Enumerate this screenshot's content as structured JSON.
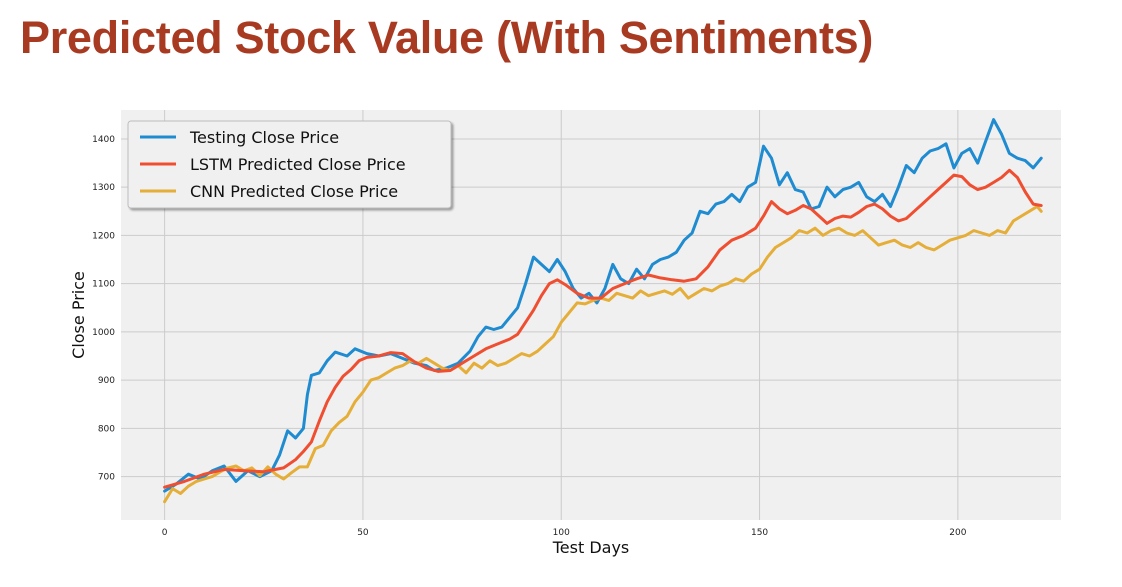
{
  "title": "Predicted Stock Value (With Sentiments)",
  "colors": {
    "title": "#A83A22",
    "plot_bg": "#F0F0F0",
    "grid": "#CBCBCB"
  },
  "chart_data": {
    "type": "line",
    "xlabel": "Test Days",
    "ylabel": "Close Price",
    "xlim": [
      -11,
      226
    ],
    "ylim": [
      610,
      1460
    ],
    "xticks": [
      0,
      50,
      100,
      150,
      200
    ],
    "yticks": [
      700,
      800,
      900,
      1000,
      1100,
      1200,
      1300,
      1400
    ],
    "grid": true,
    "legend_position": "top-left",
    "series": [
      {
        "name": "Testing Close Price",
        "color": "#1F8BD0",
        "points": [
          [
            0,
            670
          ],
          [
            3,
            685
          ],
          [
            6,
            705
          ],
          [
            9,
            695
          ],
          [
            12,
            712
          ],
          [
            15,
            722
          ],
          [
            18,
            690
          ],
          [
            21,
            712
          ],
          [
            24,
            700
          ],
          [
            27,
            712
          ],
          [
            29,
            745
          ],
          [
            31,
            795
          ],
          [
            33,
            780
          ],
          [
            35,
            800
          ],
          [
            36,
            870
          ],
          [
            37,
            910
          ],
          [
            39,
            915
          ],
          [
            41,
            940
          ],
          [
            43,
            958
          ],
          [
            46,
            950
          ],
          [
            48,
            965
          ],
          [
            51,
            955
          ],
          [
            54,
            950
          ],
          [
            57,
            955
          ],
          [
            60,
            945
          ],
          [
            63,
            935
          ],
          [
            66,
            930
          ],
          [
            68,
            920
          ],
          [
            71,
            925
          ],
          [
            74,
            935
          ],
          [
            77,
            960
          ],
          [
            79,
            990
          ],
          [
            81,
            1010
          ],
          [
            83,
            1005
          ],
          [
            85,
            1010
          ],
          [
            87,
            1030
          ],
          [
            89,
            1050
          ],
          [
            91,
            1100
          ],
          [
            93,
            1155
          ],
          [
            95,
            1140
          ],
          [
            97,
            1125
          ],
          [
            99,
            1150
          ],
          [
            101,
            1125
          ],
          [
            103,
            1090
          ],
          [
            105,
            1070
          ],
          [
            107,
            1080
          ],
          [
            109,
            1060
          ],
          [
            111,
            1090
          ],
          [
            113,
            1140
          ],
          [
            115,
            1110
          ],
          [
            117,
            1100
          ],
          [
            119,
            1130
          ],
          [
            121,
            1110
          ],
          [
            123,
            1140
          ],
          [
            125,
            1150
          ],
          [
            127,
            1155
          ],
          [
            129,
            1165
          ],
          [
            131,
            1190
          ],
          [
            133,
            1205
          ],
          [
            135,
            1250
          ],
          [
            137,
            1245
          ],
          [
            139,
            1265
          ],
          [
            141,
            1270
          ],
          [
            143,
            1285
          ],
          [
            145,
            1270
          ],
          [
            147,
            1300
          ],
          [
            149,
            1310
          ],
          [
            151,
            1385
          ],
          [
            153,
            1360
          ],
          [
            155,
            1305
          ],
          [
            157,
            1330
          ],
          [
            159,
            1295
          ],
          [
            161,
            1290
          ],
          [
            163,
            1255
          ],
          [
            165,
            1260
          ],
          [
            167,
            1300
          ],
          [
            169,
            1280
          ],
          [
            171,
            1295
          ],
          [
            173,
            1300
          ],
          [
            175,
            1310
          ],
          [
            177,
            1280
          ],
          [
            179,
            1270
          ],
          [
            181,
            1285
          ],
          [
            183,
            1260
          ],
          [
            185,
            1300
          ],
          [
            187,
            1345
          ],
          [
            189,
            1330
          ],
          [
            191,
            1360
          ],
          [
            193,
            1375
          ],
          [
            195,
            1380
          ],
          [
            197,
            1390
          ],
          [
            199,
            1340
          ],
          [
            201,
            1370
          ],
          [
            203,
            1380
          ],
          [
            205,
            1350
          ],
          [
            207,
            1395
          ],
          [
            209,
            1440
          ],
          [
            211,
            1410
          ],
          [
            213,
            1370
          ],
          [
            215,
            1360
          ],
          [
            217,
            1355
          ],
          [
            219,
            1340
          ],
          [
            221,
            1360
          ]
        ]
      },
      {
        "name": "LSTM Predicted Close Price",
        "color": "#F04E30",
        "points": [
          [
            0,
            678
          ],
          [
            5,
            690
          ],
          [
            10,
            705
          ],
          [
            15,
            715
          ],
          [
            20,
            712
          ],
          [
            25,
            710
          ],
          [
            28,
            715
          ],
          [
            30,
            718
          ],
          [
            33,
            735
          ],
          [
            35,
            752
          ],
          [
            37,
            772
          ],
          [
            39,
            815
          ],
          [
            41,
            855
          ],
          [
            43,
            885
          ],
          [
            45,
            908
          ],
          [
            47,
            922
          ],
          [
            49,
            940
          ],
          [
            51,
            947
          ],
          [
            54,
            950
          ],
          [
            57,
            957
          ],
          [
            60,
            955
          ],
          [
            63,
            938
          ],
          [
            66,
            925
          ],
          [
            69,
            918
          ],
          [
            72,
            920
          ],
          [
            75,
            935
          ],
          [
            78,
            950
          ],
          [
            81,
            965
          ],
          [
            84,
            975
          ],
          [
            87,
            985
          ],
          [
            89,
            995
          ],
          [
            91,
            1020
          ],
          [
            93,
            1045
          ],
          [
            95,
            1075
          ],
          [
            97,
            1100
          ],
          [
            99,
            1108
          ],
          [
            101,
            1098
          ],
          [
            104,
            1080
          ],
          [
            107,
            1070
          ],
          [
            110,
            1070
          ],
          [
            113,
            1090
          ],
          [
            116,
            1100
          ],
          [
            119,
            1110
          ],
          [
            122,
            1118
          ],
          [
            125,
            1112
          ],
          [
            128,
            1108
          ],
          [
            131,
            1105
          ],
          [
            134,
            1110
          ],
          [
            137,
            1135
          ],
          [
            140,
            1170
          ],
          [
            143,
            1190
          ],
          [
            146,
            1200
          ],
          [
            149,
            1215
          ],
          [
            151,
            1240
          ],
          [
            153,
            1270
          ],
          [
            155,
            1255
          ],
          [
            157,
            1245
          ],
          [
            159,
            1252
          ],
          [
            161,
            1262
          ],
          [
            163,
            1255
          ],
          [
            165,
            1240
          ],
          [
            167,
            1225
          ],
          [
            169,
            1235
          ],
          [
            171,
            1240
          ],
          [
            173,
            1238
          ],
          [
            175,
            1248
          ],
          [
            177,
            1260
          ],
          [
            179,
            1265
          ],
          [
            181,
            1255
          ],
          [
            183,
            1240
          ],
          [
            185,
            1230
          ],
          [
            187,
            1235
          ],
          [
            189,
            1250
          ],
          [
            191,
            1265
          ],
          [
            193,
            1280
          ],
          [
            195,
            1295
          ],
          [
            197,
            1310
          ],
          [
            199,
            1325
          ],
          [
            201,
            1322
          ],
          [
            203,
            1305
          ],
          [
            205,
            1295
          ],
          [
            207,
            1300
          ],
          [
            209,
            1310
          ],
          [
            211,
            1320
          ],
          [
            213,
            1335
          ],
          [
            215,
            1320
          ],
          [
            217,
            1290
          ],
          [
            219,
            1265
          ],
          [
            221,
            1262
          ]
        ]
      },
      {
        "name": "CNN Predicted Close Price",
        "color": "#E5AE38",
        "points": [
          [
            0,
            648
          ],
          [
            2,
            675
          ],
          [
            4,
            665
          ],
          [
            6,
            680
          ],
          [
            8,
            690
          ],
          [
            10,
            695
          ],
          [
            12,
            700
          ],
          [
            14,
            710
          ],
          [
            16,
            718
          ],
          [
            18,
            722
          ],
          [
            20,
            712
          ],
          [
            22,
            718
          ],
          [
            24,
            702
          ],
          [
            26,
            720
          ],
          [
            28,
            705
          ],
          [
            30,
            695
          ],
          [
            32,
            708
          ],
          [
            34,
            720
          ],
          [
            36,
            720
          ],
          [
            38,
            758
          ],
          [
            40,
            765
          ],
          [
            42,
            795
          ],
          [
            44,
            812
          ],
          [
            46,
            825
          ],
          [
            48,
            855
          ],
          [
            50,
            875
          ],
          [
            52,
            900
          ],
          [
            54,
            905
          ],
          [
            56,
            915
          ],
          [
            58,
            925
          ],
          [
            60,
            930
          ],
          [
            62,
            940
          ],
          [
            64,
            935
          ],
          [
            66,
            945
          ],
          [
            68,
            935
          ],
          [
            70,
            925
          ],
          [
            72,
            920
          ],
          [
            74,
            930
          ],
          [
            76,
            915
          ],
          [
            78,
            935
          ],
          [
            80,
            925
          ],
          [
            82,
            940
          ],
          [
            84,
            930
          ],
          [
            86,
            935
          ],
          [
            88,
            945
          ],
          [
            90,
            955
          ],
          [
            92,
            950
          ],
          [
            94,
            960
          ],
          [
            96,
            975
          ],
          [
            98,
            990
          ],
          [
            100,
            1020
          ],
          [
            102,
            1040
          ],
          [
            104,
            1060
          ],
          [
            106,
            1058
          ],
          [
            108,
            1065
          ],
          [
            110,
            1070
          ],
          [
            112,
            1065
          ],
          [
            114,
            1080
          ],
          [
            116,
            1075
          ],
          [
            118,
            1070
          ],
          [
            120,
            1085
          ],
          [
            122,
            1075
          ],
          [
            124,
            1080
          ],
          [
            126,
            1085
          ],
          [
            128,
            1078
          ],
          [
            130,
            1090
          ],
          [
            132,
            1070
          ],
          [
            134,
            1080
          ],
          [
            136,
            1090
          ],
          [
            138,
            1085
          ],
          [
            140,
            1095
          ],
          [
            142,
            1100
          ],
          [
            144,
            1110
          ],
          [
            146,
            1105
          ],
          [
            148,
            1120
          ],
          [
            150,
            1130
          ],
          [
            152,
            1155
          ],
          [
            154,
            1175
          ],
          [
            156,
            1185
          ],
          [
            158,
            1195
          ],
          [
            160,
            1210
          ],
          [
            162,
            1205
          ],
          [
            164,
            1215
          ],
          [
            166,
            1200
          ],
          [
            168,
            1210
          ],
          [
            170,
            1215
          ],
          [
            172,
            1205
          ],
          [
            174,
            1200
          ],
          [
            176,
            1210
          ],
          [
            178,
            1195
          ],
          [
            180,
            1180
          ],
          [
            182,
            1185
          ],
          [
            184,
            1190
          ],
          [
            186,
            1180
          ],
          [
            188,
            1175
          ],
          [
            190,
            1185
          ],
          [
            192,
            1175
          ],
          [
            194,
            1170
          ],
          [
            196,
            1180
          ],
          [
            198,
            1190
          ],
          [
            200,
            1195
          ],
          [
            202,
            1200
          ],
          [
            204,
            1210
          ],
          [
            206,
            1205
          ],
          [
            208,
            1200
          ],
          [
            210,
            1210
          ],
          [
            212,
            1205
          ],
          [
            214,
            1230
          ],
          [
            216,
            1240
          ],
          [
            218,
            1250
          ],
          [
            220,
            1260
          ],
          [
            221,
            1250
          ]
        ]
      }
    ]
  }
}
